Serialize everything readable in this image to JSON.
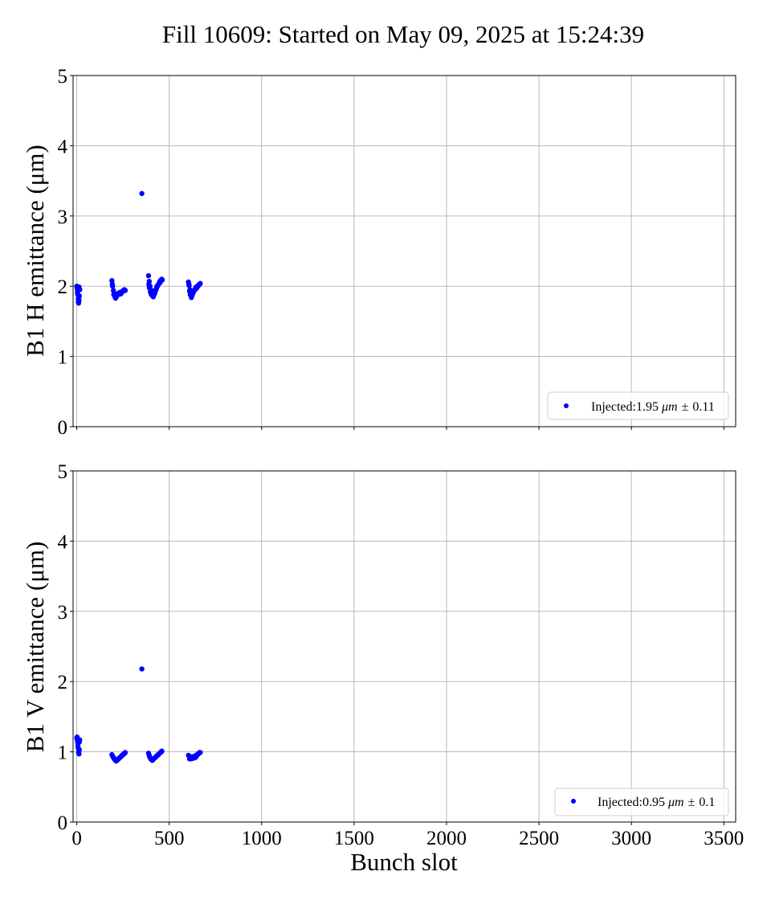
{
  "chart_data": [
    {
      "type": "scatter",
      "title": "Fill 10609: Started on May 09, 2025 at 15:24:39",
      "xlabel": "",
      "ylabel": "B1 H emittance (μm)",
      "xlim": [
        -20,
        3564
      ],
      "ylim": [
        0,
        5
      ],
      "xticks": [
        "0",
        "500",
        "1000",
        "1500",
        "2000",
        "2500",
        "3000",
        "3500"
      ],
      "xtick_values": [
        0,
        500,
        1000,
        1500,
        2000,
        2500,
        3000,
        3500
      ],
      "xtick_labels_visible": false,
      "yticks": [
        "0",
        "1",
        "2",
        "3",
        "4",
        "5"
      ],
      "ytick_values": [
        0,
        1,
        2,
        3,
        4,
        5
      ],
      "grid": true,
      "legend_position": "lower-right",
      "series": [
        {
          "label_prefix": "Injected:",
          "label_value": "1.95",
          "label_unit": "μm",
          "label_pm": "±",
          "label_err": "0.11",
          "color": "#0000ff",
          "x": [
            0,
            2,
            4,
            6,
            8,
            10,
            12,
            14,
            16,
            2,
            4,
            8,
            10,
            12,
            190,
            194,
            198,
            202,
            206,
            210,
            214,
            218,
            222,
            226,
            230,
            234,
            238,
            242,
            246,
            250,
            254,
            258,
            262,
            192,
            200,
            208,
            216,
            224,
            232,
            240,
            248,
            256,
            352,
            388,
            392,
            396,
            400,
            404,
            408,
            412,
            416,
            420,
            424,
            428,
            432,
            436,
            440,
            444,
            448,
            452,
            456,
            460,
            390,
            398,
            406,
            414,
            422,
            430,
            438,
            446,
            454,
            462,
            392,
            402,
            418,
            434,
            450,
            604,
            608,
            612,
            616,
            620,
            624,
            628,
            632,
            636,
            640,
            644,
            648,
            652,
            656,
            660,
            664,
            668,
            606,
            614,
            622,
            630,
            638,
            646,
            654,
            662,
            610,
            626,
            642,
            658
          ],
          "y": [
            2.0,
            1.97,
            1.93,
            1.88,
            1.82,
            1.76,
            1.8,
            1.86,
            1.95,
            1.98,
            1.9,
            1.78,
            1.84,
            1.99,
            2.08,
            2.0,
            1.94,
            1.9,
            1.86,
            1.83,
            1.85,
            1.87,
            1.89,
            1.9,
            1.91,
            1.9,
            1.89,
            1.91,
            1.92,
            1.93,
            1.94,
            1.95,
            1.94,
            2.03,
            1.88,
            1.84,
            1.86,
            1.88,
            1.9,
            1.92,
            1.93,
            1.95,
            3.32,
            2.15,
            2.07,
            2.0,
            1.95,
            1.91,
            1.88,
            1.86,
            1.87,
            1.89,
            1.92,
            1.95,
            1.98,
            2.0,
            2.02,
            2.04,
            2.06,
            2.08,
            2.09,
            2.1,
            2.03,
            1.92,
            1.87,
            1.85,
            1.9,
            1.96,
            2.01,
            2.05,
            2.07,
            2.09,
            1.98,
            1.89,
            1.93,
            2.0,
            2.05,
            2.06,
            2.01,
            1.95,
            1.9,
            1.84,
            1.87,
            1.9,
            1.92,
            1.94,
            1.96,
            1.98,
            1.97,
            1.99,
            2.01,
            2.02,
            2.03,
            2.04,
            2.03,
            1.88,
            1.91,
            1.93,
            1.95,
            1.99,
            2.0,
            2.02,
            1.93,
            1.89,
            1.96,
            2.01
          ]
        }
      ]
    },
    {
      "type": "scatter",
      "title": "",
      "xlabel": "Bunch slot",
      "ylabel": "B1 V emittance (μm)",
      "xlim": [
        -20,
        3564
      ],
      "ylim": [
        0,
        5
      ],
      "xticks": [
        "0",
        "500",
        "1000",
        "1500",
        "2000",
        "2500",
        "3000",
        "3500"
      ],
      "xtick_values": [
        0,
        500,
        1000,
        1500,
        2000,
        2500,
        3000,
        3500
      ],
      "xtick_labels_visible": true,
      "yticks": [
        "0",
        "1",
        "2",
        "3",
        "4",
        "5"
      ],
      "ytick_values": [
        0,
        1,
        2,
        3,
        4,
        5
      ],
      "grid": true,
      "legend_position": "lower-right",
      "series": [
        {
          "label_prefix": "Injected:",
          "label_value": "0.95",
          "label_unit": "μm",
          "label_pm": "±",
          "label_err": "0.1",
          "color": "#0000ff",
          "x": [
            0,
            2,
            4,
            6,
            8,
            10,
            12,
            14,
            16,
            2,
            6,
            10,
            14,
            190,
            194,
            198,
            202,
            206,
            210,
            214,
            218,
            222,
            226,
            230,
            234,
            238,
            242,
            246,
            250,
            254,
            258,
            262,
            196,
            212,
            228,
            244,
            260,
            352,
            388,
            392,
            396,
            400,
            404,
            408,
            412,
            416,
            420,
            424,
            428,
            432,
            436,
            440,
            444,
            448,
            452,
            456,
            460,
            394,
            410,
            426,
            442,
            458,
            604,
            608,
            612,
            616,
            620,
            624,
            628,
            632,
            636,
            640,
            644,
            648,
            652,
            656,
            660,
            664,
            668,
            610,
            626,
            642,
            658
          ],
          "y": [
            1.2,
            1.18,
            1.15,
            1.12,
            1.05,
            1.0,
            0.97,
            1.03,
            1.17,
            1.21,
            1.08,
            0.99,
            1.14,
            0.96,
            0.94,
            0.92,
            0.9,
            0.89,
            0.88,
            0.87,
            0.88,
            0.89,
            0.9,
            0.91,
            0.92,
            0.93,
            0.94,
            0.95,
            0.96,
            0.97,
            0.98,
            0.99,
            0.93,
            0.87,
            0.91,
            0.95,
            0.98,
            2.18,
            0.98,
            0.95,
            0.92,
            0.9,
            0.89,
            0.88,
            0.89,
            0.9,
            0.91,
            0.92,
            0.93,
            0.94,
            0.95,
            0.96,
            0.97,
            0.98,
            0.99,
            1.0,
            1.01,
            0.93,
            0.88,
            0.92,
            0.96,
            1.0,
            0.95,
            0.94,
            0.92,
            0.91,
            0.9,
            0.91,
            0.92,
            0.91,
            0.93,
            0.94,
            0.95,
            0.94,
            0.96,
            0.97,
            0.98,
            0.99,
            0.99,
            0.9,
            0.93,
            0.92,
            0.97
          ]
        }
      ]
    }
  ]
}
